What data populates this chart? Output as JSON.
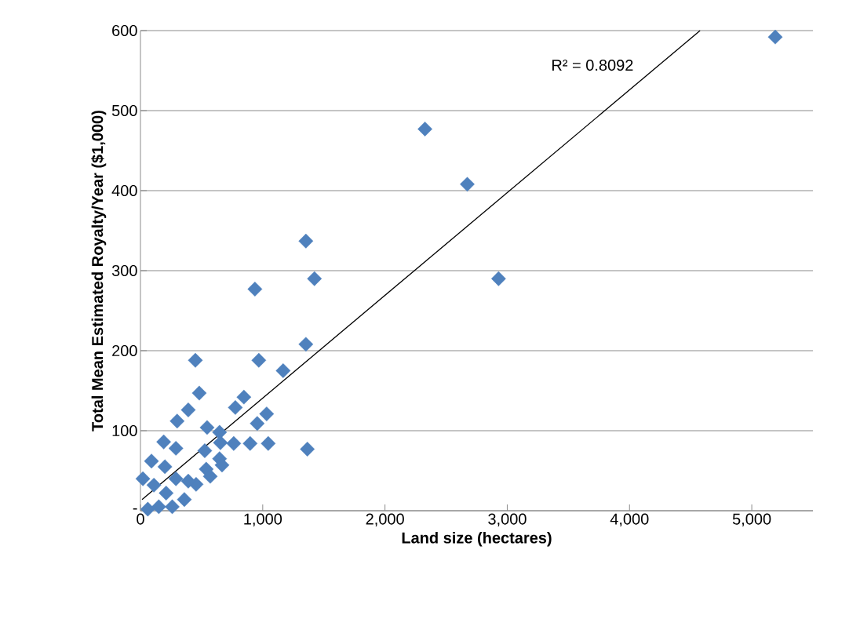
{
  "chart_data": {
    "type": "scatter",
    "xlabel": "Land size (hectares)",
    "ylabel": "Total Mean Estimated Royalty/Year ($1,000)",
    "xlim": [
      0,
      5500
    ],
    "ylim": [
      0,
      600
    ],
    "xticks": [
      0,
      {
        "value": 1000,
        "label": "1,000"
      },
      {
        "value": 2000,
        "label": "2,000"
      },
      {
        "value": 3000,
        "label": "3,000"
      },
      {
        "value": 4000,
        "label": "4,000"
      },
      {
        "value": 5000,
        "label": "5,000"
      }
    ],
    "yticks": [
      {
        "value": 0,
        "label": "-"
      },
      100,
      200,
      300,
      400,
      500,
      600
    ],
    "grid": "y",
    "marker": "diamond",
    "annotations": [
      "R² = 0.8092"
    ],
    "series": [
      {
        "color": "#4f81bd",
        "x": [
          5192,
          2327,
          2673,
          2929,
          1353,
          1423,
          936,
          1353,
          968,
          1167,
          449,
          481,
          846,
          776,
          1032,
          955,
          545,
          647,
          763,
          897,
          1045,
          1365,
          654,
          526,
          647,
          667,
          538,
          571,
          455,
          391,
          359,
          391,
          300,
          190,
          90,
          20,
          60,
          200,
          290,
          110,
          210,
          290,
          150,
          260
        ],
        "values": [
          592,
          477,
          408,
          290,
          337,
          290,
          277,
          208,
          188,
          175,
          188,
          147,
          142,
          129,
          121,
          109,
          104,
          98,
          84,
          84,
          84,
          77,
          85,
          75,
          65,
          57,
          52,
          43,
          33,
          37,
          14,
          126,
          112,
          86,
          62,
          40,
          2,
          55,
          78,
          32,
          22,
          40,
          5,
          5
        ]
      },
      {
        "type": "line",
        "color": "#000000",
        "marker": "none",
        "x": [
          13,
          4577
        ],
        "values": [
          14,
          600
        ]
      }
    ]
  }
}
